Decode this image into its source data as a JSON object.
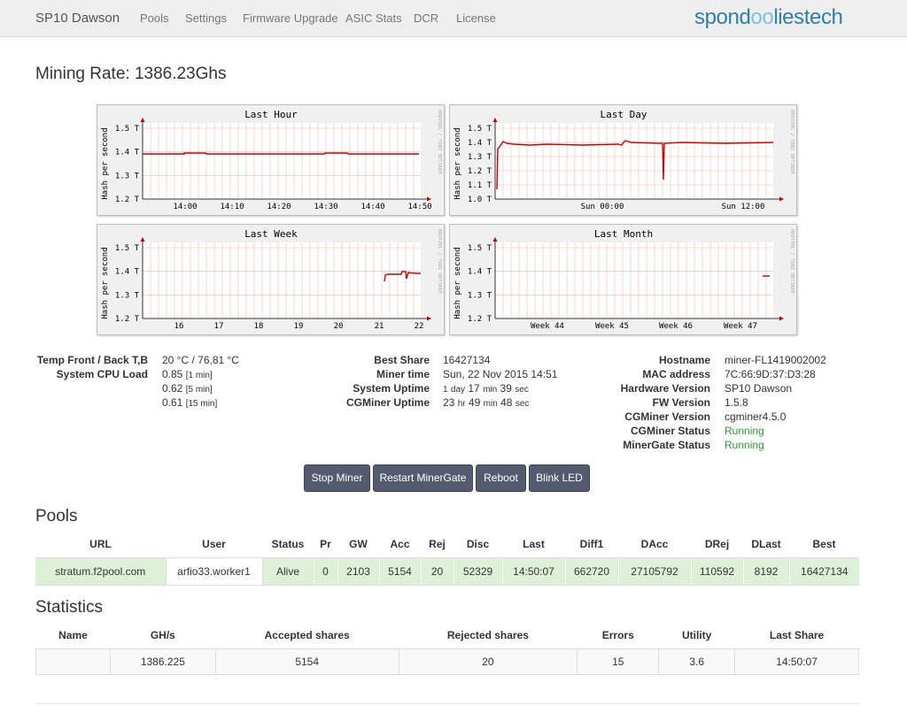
{
  "nav": {
    "brand": "SP10 Dawson",
    "items": [
      "Pools",
      "Settings",
      "Firmware Upgrade",
      "ASIC Stats",
      "DCR",
      "License"
    ],
    "logo_a": "spond",
    "logo_b": "oo",
    "logo_c": "liestech"
  },
  "mining_rate": "Mining Rate: 1386.23Ghs",
  "graphs": [
    {
      "title": "Last Hour",
      "ylabel": "Hash per second",
      "side": "RRDTOOL / TOBI OETIKER",
      "yticks": [
        "1.5 T",
        "1.4 T",
        "1.3 T",
        "1.2 T"
      ],
      "xticks": [
        "14:00",
        "14:10",
        "14:20",
        "14:30",
        "14:40",
        "14:50"
      ]
    },
    {
      "title": "Last Day",
      "ylabel": "Hash per second",
      "side": "RRDTOOL / TOBI OETIKER",
      "yticks": [
        "1.5 T",
        "1.4 T",
        "1.3 T",
        "1.2 T",
        "1.1 T",
        "1.0 T"
      ],
      "xticks": [
        "Sun 00:00",
        "Sun 12:00"
      ]
    },
    {
      "title": "Last Week",
      "ylabel": "Hash per second",
      "side": "RRDTOOL / TOBI OETIKER",
      "yticks": [
        "1.5 T",
        "1.4 T",
        "1.3 T",
        "1.2 T"
      ],
      "xticks": [
        "16",
        "17",
        "18",
        "19",
        "20",
        "21",
        "22"
      ]
    },
    {
      "title": "Last Month",
      "ylabel": "Hash per second",
      "side": "RRDTOOL / TOBI OETIKER",
      "yticks": [
        "1.5 T",
        "1.4 T",
        "1.3 T",
        "1.2 T"
      ],
      "xticks": [
        "Week 44",
        "Week 45",
        "Week 46",
        "Week 47"
      ]
    }
  ],
  "status_left": {
    "temp_label": "Temp Front / Back T,B",
    "temp_value": "20 °C / 76,81 °C",
    "cpu_label": "System CPU Load",
    "cpu_loads": [
      {
        "value": "0.85",
        "period": "[1 min]"
      },
      {
        "value": "0.62",
        "period": "[5 min]"
      },
      {
        "value": "0.61",
        "period": "[15 min]"
      }
    ]
  },
  "status_mid": {
    "best_share_label": "Best Share",
    "best_share": "16427134",
    "miner_time_label": "Miner time",
    "miner_time": "Sun, 22 Nov 2015 14:51",
    "sys_uptime_label": "System Uptime",
    "sys_uptime": {
      "a": "1",
      "b": "day",
      "c": "17",
      "d": "min",
      "e": "39",
      "f": "sec"
    },
    "cg_uptime_label": "CGMiner Uptime",
    "cg_uptime": {
      "a": "23",
      "b": "hr",
      "c": "49",
      "d": "min",
      "e": "48",
      "f": "sec"
    }
  },
  "status_right": {
    "hostname_label": "Hostname",
    "hostname": "miner-FL1419002002",
    "mac_label": "MAC address",
    "mac": "7C:66:9D:37:D3:28",
    "hw_label": "Hardware Version",
    "hw": "SP10 Dawson",
    "fw_label": "FW Version",
    "fw": "1.5.8",
    "cgv_label": "CGMiner Version",
    "cgv": "cgminer4.5.0",
    "cgs_label": "CGMiner Status",
    "cgs": "Running",
    "mgs_label": "MinerGate Status",
    "mgs": "Running"
  },
  "buttons": {
    "stop": "Stop Miner",
    "restart": "Restart MinerGate",
    "reboot": "Reboot",
    "blink": "Blink LED"
  },
  "pools": {
    "heading": "Pools",
    "headers": [
      "URL",
      "User",
      "Status",
      "Pr",
      "GW",
      "Acc",
      "Rej",
      "Disc",
      "Last",
      "Diff1",
      "DAcc",
      "DRej",
      "DLast",
      "Best"
    ],
    "rows": [
      [
        "stratum.f2pool.com",
        "arfio33.worker1",
        "Alive",
        "0",
        "2103",
        "5154",
        "20",
        "52329",
        "14:50:07",
        "662720",
        "27105792",
        "110592",
        "8192",
        "16427134"
      ]
    ]
  },
  "statistics": {
    "heading": "Statistics",
    "headers": [
      "Name",
      "GH/s",
      "Accepted shares",
      "Rejected shares",
      "Errors",
      "Utility",
      "Last Share"
    ],
    "rows": [
      [
        "",
        "1386.225",
        "5154",
        "20",
        "15",
        "3.6",
        "14:50:07"
      ]
    ]
  },
  "colors": {
    "plot_line": "#cc0000",
    "grid": "#f2b8b8",
    "running": "#2e9a2e",
    "button": "#555b6e"
  }
}
